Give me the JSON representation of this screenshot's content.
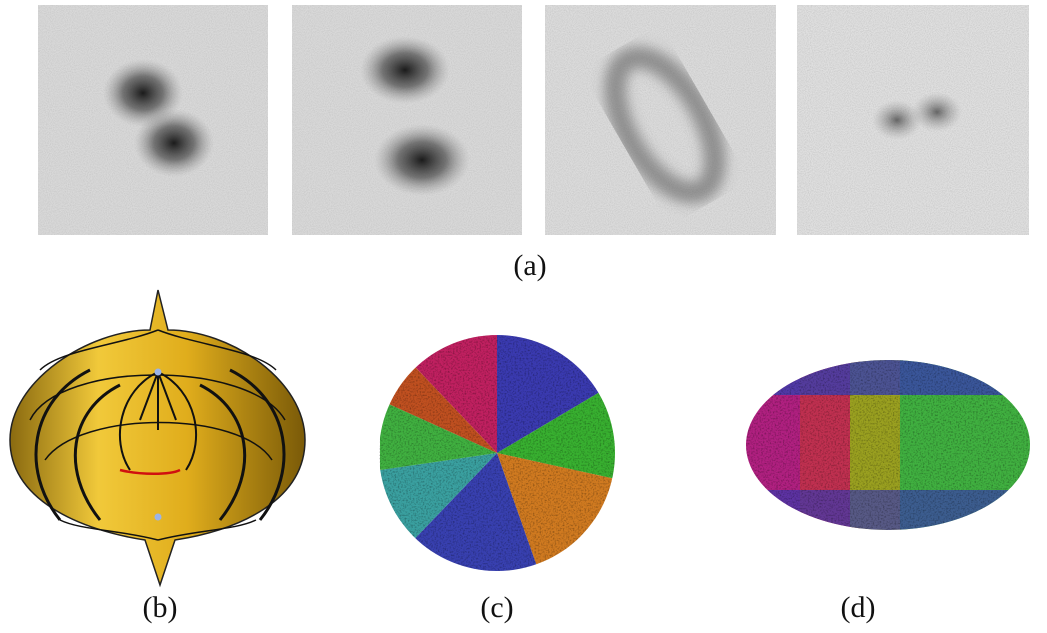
{
  "figure": {
    "labels": [
      "(a)",
      "(b)",
      "(c)",
      "(d)"
    ]
  }
}
